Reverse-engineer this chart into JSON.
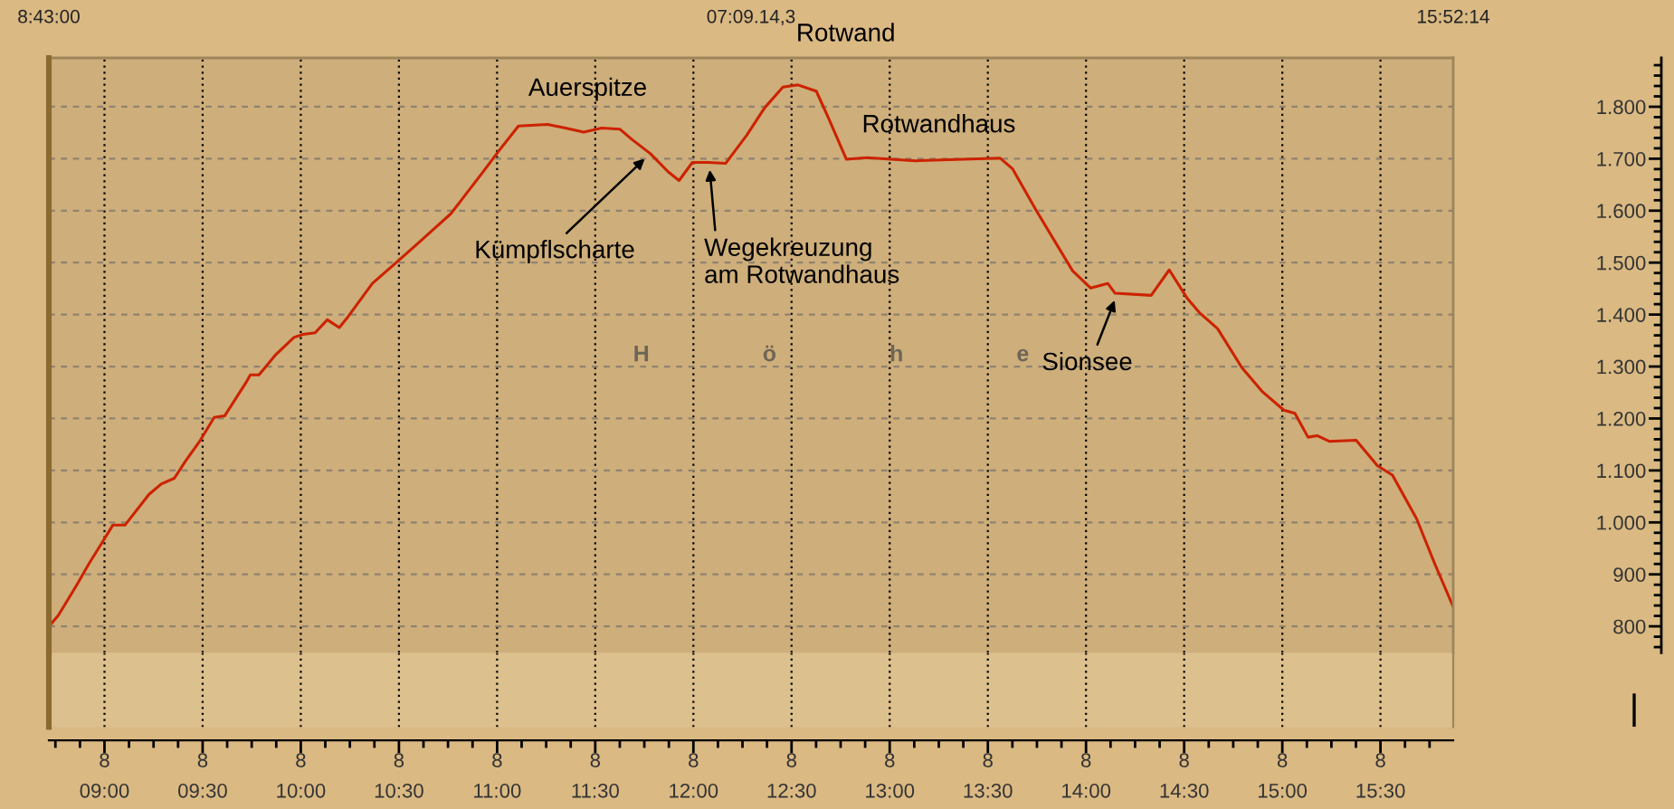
{
  "chart_data": {
    "type": "line",
    "ylabel": "H                  ö                  h                  e",
    "annotations": [
      "8:43:00",
      "07:09.14,3",
      "15:52:14",
      "8",
      "8",
      "8",
      "8",
      "8",
      "8",
      "8",
      "8",
      "8",
      "8",
      "8",
      "8",
      "8",
      "8",
      {
        "text": "Auerspitze",
        "x": 11.18,
        "y": 1766
      },
      {
        "text": "Rotwand",
        "x": 12.533,
        "y": 1842
      },
      {
        "text": "Rotwandhaus",
        "x": 13.25,
        "y": 1698
      },
      {
        "text": "Kümpflscharte",
        "x": 11.78,
        "y": 1710
      },
      {
        "text": "Wegekreuzung\nam Rotwandhaus",
        "x": 12.08,
        "y": 1693
      },
      {
        "text": "Sionsee",
        "x": 14.16,
        "y": 1441
      }
    ],
    "x": [
      8.72,
      8.765,
      8.858,
      8.92,
      8.996,
      9.043,
      9.105,
      9.227,
      9.289,
      9.356,
      9.411,
      9.488,
      9.559,
      9.612,
      9.719,
      9.743,
      9.787,
      9.873,
      9.965,
      10.011,
      10.073,
      10.135,
      10.196,
      10.241,
      10.365,
      10.489,
      10.611,
      10.764,
      10.919,
      11.011,
      11.109,
      11.257,
      11.348,
      11.441,
      11.533,
      11.625,
      11.687,
      11.78,
      11.871,
      11.927,
      11.995,
      12.072,
      12.164,
      12.271,
      12.363,
      12.456,
      12.533,
      12.626,
      12.686,
      12.779,
      12.885,
      13.133,
      13.563,
      13.625,
      13.747,
      13.932,
      14.024,
      14.111,
      14.148,
      14.332,
      14.424,
      14.516,
      14.577,
      14.67,
      14.794,
      14.9,
      15.008,
      15.064,
      15.131,
      15.177,
      15.239,
      15.376,
      15.485,
      15.561,
      15.684,
      15.777,
      15.87
    ],
    "series": [
      {
        "color": "#cc2200",
        "values": [
          801,
          821,
          879,
          920,
          966,
          995,
          995,
          1054,
          1074,
          1085,
          1117,
          1158,
          1202,
          1205,
          1268,
          1284,
          1284,
          1323,
          1356,
          1362,
          1365,
          1390,
          1375,
          1396,
          1460,
          1501,
          1542,
          1594,
          1670,
          1716,
          1763,
          1766,
          1759,
          1751,
          1759,
          1757,
          1737,
          1710,
          1675,
          1658,
          1693,
          1693,
          1691,
          1745,
          1798,
          1838,
          1842,
          1830,
          1780,
          1699,
          1702,
          1696,
          1701,
          1681,
          1600,
          1484,
          1451,
          1460,
          1441,
          1437,
          1486,
          1431,
          1404,
          1373,
          1298,
          1251,
          1216,
          1210,
          1164,
          1167,
          1156,
          1158,
          1109,
          1091,
          1007,
          920,
          838
        ]
      }
    ],
    "xlim": [
      8.716667,
      15.870556
    ],
    "xticks": [
      {
        "value": 9,
        "label": "09:00"
      },
      {
        "value": 9.5,
        "label": "09:30"
      },
      {
        "value": 10,
        "label": "10:00"
      },
      {
        "value": 10.5,
        "label": "10:30"
      },
      {
        "value": 11,
        "label": "11:00"
      },
      {
        "value": 11.5,
        "label": "11:30"
      },
      {
        "value": 12,
        "label": "12:00"
      },
      {
        "value": 12.5,
        "label": "12:30"
      },
      {
        "value": 13,
        "label": "13:00"
      },
      {
        "value": 13.5,
        "label": "13:30"
      },
      {
        "value": 14,
        "label": "14:00"
      },
      {
        "value": 14.5,
        "label": "14:30"
      },
      {
        "value": 15,
        "label": "15:00"
      },
      {
        "value": 15.5,
        "label": "15:30"
      }
    ],
    "ylim": [
      749,
      1894
    ],
    "yticks": [
      800,
      900,
      {
        "value": 1000,
        "label": "1.000"
      },
      {
        "value": 1100,
        "label": "1.100"
      },
      {
        "value": 1200,
        "label": "1.200"
      },
      {
        "value": 1300,
        "label": "1.300"
      },
      {
        "value": 1400,
        "label": "1.400"
      },
      {
        "value": 1500,
        "label": "1.500"
      },
      {
        "value": 1600,
        "label": "1.600"
      },
      {
        "value": 1700,
        "label": "1.700"
      },
      {
        "value": 1800,
        "label": "1.800"
      }
    ],
    "grid": true
  }
}
